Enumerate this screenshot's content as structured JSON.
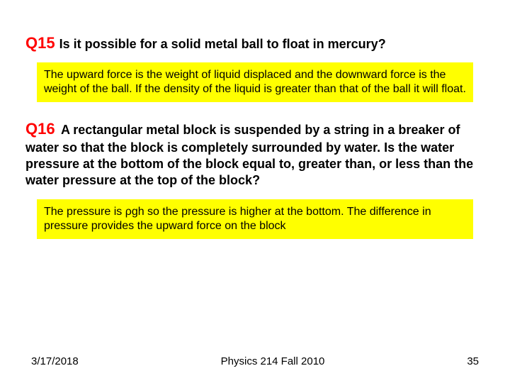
{
  "colors": {
    "q_label": "#ff0000",
    "answer_bg": "#ffff00",
    "text": "#000000",
    "background": "#ffffff"
  },
  "typography": {
    "font_family": "Arial",
    "q_label_fontsize": 22,
    "q_text_fontsize": 18,
    "answer_fontsize": 16,
    "footer_fontsize": 15
  },
  "q15": {
    "label": "Q15",
    "question": "Is it possible for a solid metal ball to float in mercury?",
    "answer": "The upward force is the weight of liquid displaced and the downward force is the weight of the ball. If the density of the liquid is greater than that of the ball it will float."
  },
  "q16": {
    "label": "Q16",
    "question": "A rectangular metal block is suspended by a string in a breaker of water so that the block is completely surrounded by water. Is the water pressure at the bottom of the block equal to, greater than, or less than the water pressure at the top of the block?",
    "answer": "The pressure is ρgh so the pressure is higher at the bottom. The difference in pressure provides the upward force on the block"
  },
  "footer": {
    "date": "3/17/2018",
    "center": "Physics 214 Fall 2010",
    "page": "35"
  }
}
